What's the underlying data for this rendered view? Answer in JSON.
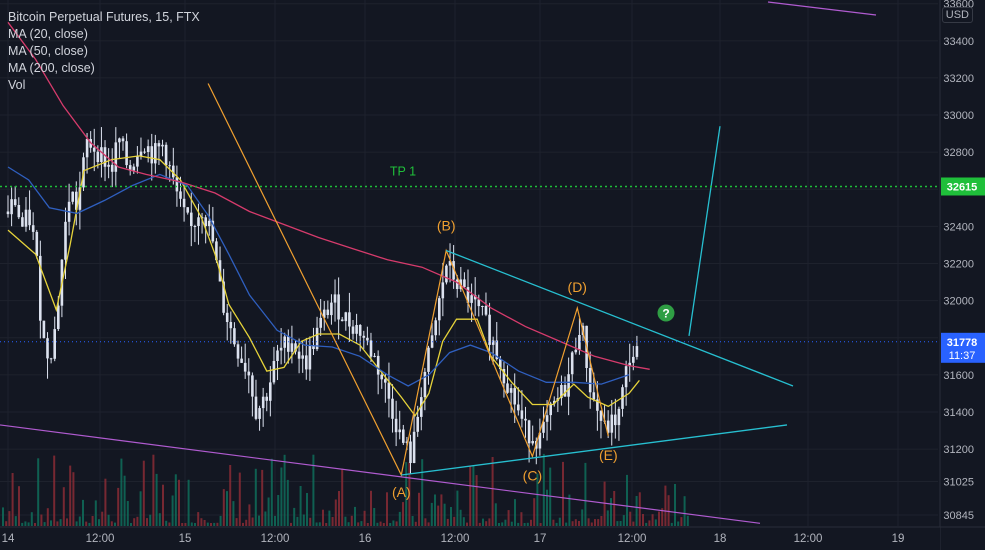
{
  "header": {
    "symbol_line": "Bitcoin Perpetual Futures, 15, FTX",
    "indicators": [
      "MA (20, close)",
      "MA (50, close)",
      "MA (200, close)",
      "Vol"
    ],
    "currency": "USD"
  },
  "colors": {
    "background": "#131722",
    "grid": "#1e222d",
    "text": "#b2b5be",
    "candle": "#dce2ef",
    "ma20": "#e6d33a",
    "ma50": "#2f5fbf",
    "ma200": "#d63b6c",
    "wave": "#f0a030",
    "triangle": "#27bfd0",
    "purple": "#b05bd0",
    "target_line": "#27bfd0",
    "tp_line": "#1fbf3a",
    "current_price_bg": "#2962ff",
    "vol_up": "#0f6d5b",
    "vol_down": "#8a2b35"
  },
  "chart_data": {
    "type": "candlestick",
    "instrument": "Bitcoin Perpetual Futures",
    "interval": "15",
    "exchange": "FTX",
    "y_axis": {
      "range": [
        30780,
        33620
      ],
      "ticks": [
        33600,
        33400,
        33200,
        33000,
        32800,
        32600,
        32400,
        32200,
        32000,
        31800,
        31600,
        31400,
        31200,
        31025,
        30845
      ]
    },
    "x_axis": {
      "ticks": [
        "14",
        "12:00",
        "15",
        "12:00",
        "16",
        "12:00",
        "17",
        "12:00",
        "18",
        "12:00",
        "19"
      ]
    },
    "price_path": [
      [
        0,
        32480
      ],
      [
        0.02,
        32540
      ],
      [
        0.04,
        32390
      ],
      [
        0.06,
        32460
      ],
      [
        0.08,
        32280
      ],
      [
        0.1,
        31800
      ],
      [
        0.12,
        31700
      ],
      [
        0.14,
        31880
      ],
      [
        0.16,
        32300
      ],
      [
        0.18,
        32600
      ],
      [
        0.2,
        32500
      ],
      [
        0.23,
        32860
      ],
      [
        0.27,
        32790
      ],
      [
        0.3,
        32700
      ],
      [
        0.32,
        32880
      ],
      [
        0.35,
        32700
      ],
      [
        0.39,
        32870
      ],
      [
        0.42,
        32780
      ],
      [
        0.45,
        32840
      ],
      [
        0.47,
        32700
      ],
      [
        0.5,
        32500
      ],
      [
        0.53,
        32380
      ],
      [
        0.56,
        32510
      ],
      [
        0.59,
        32360
      ],
      [
        0.62,
        32000
      ],
      [
        0.66,
        31760
      ],
      [
        0.7,
        31600
      ],
      [
        0.72,
        31400
      ],
      [
        0.75,
        31500
      ],
      [
        0.78,
        31700
      ],
      [
        0.82,
        31800
      ],
      [
        0.86,
        31650
      ],
      [
        0.9,
        31850
      ],
      [
        0.94,
        32000
      ],
      [
        0.98,
        31900
      ],
      [
        1.02,
        31840
      ],
      [
        1.06,
        31700
      ],
      [
        1.1,
        31500
      ],
      [
        1.14,
        31250
      ],
      [
        1.17,
        31150
      ],
      [
        1.2,
        31550
      ],
      [
        1.23,
        31780
      ],
      [
        1.27,
        32200
      ],
      [
        1.3,
        32100
      ],
      [
        1.34,
        32000
      ],
      [
        1.38,
        31900
      ],
      [
        1.42,
        31700
      ],
      [
        1.46,
        31500
      ],
      [
        1.5,
        31300
      ],
      [
        1.54,
        31250
      ],
      [
        1.58,
        31420
      ],
      [
        1.62,
        31550
      ],
      [
        1.66,
        31900
      ],
      [
        1.69,
        31500
      ],
      [
        1.73,
        31300
      ],
      [
        1.77,
        31380
      ],
      [
        1.8,
        31700
      ],
      [
        1.83,
        31720
      ]
    ],
    "series": [
      {
        "name": "MA (20, close)",
        "values": [
          [
            0,
            32380
          ],
          [
            0.08,
            32250
          ],
          [
            0.14,
            31950
          ],
          [
            0.18,
            32300
          ],
          [
            0.22,
            32700
          ],
          [
            0.3,
            32760
          ],
          [
            0.38,
            32780
          ],
          [
            0.44,
            32760
          ],
          [
            0.5,
            32650
          ],
          [
            0.56,
            32450
          ],
          [
            0.6,
            32250
          ],
          [
            0.64,
            31980
          ],
          [
            0.7,
            31800
          ],
          [
            0.75,
            31620
          ],
          [
            0.8,
            31640
          ],
          [
            0.85,
            31780
          ],
          [
            0.9,
            31820
          ],
          [
            0.96,
            31820
          ],
          [
            1.02,
            31760
          ],
          [
            1.08,
            31620
          ],
          [
            1.14,
            31480
          ],
          [
            1.18,
            31380
          ],
          [
            1.22,
            31500
          ],
          [
            1.26,
            31780
          ],
          [
            1.3,
            31900
          ],
          [
            1.36,
            31900
          ],
          [
            1.4,
            31700
          ],
          [
            1.46,
            31560
          ],
          [
            1.52,
            31440
          ],
          [
            1.58,
            31440
          ],
          [
            1.64,
            31550
          ],
          [
            1.68,
            31480
          ],
          [
            1.74,
            31430
          ],
          [
            1.8,
            31500
          ],
          [
            1.83,
            31570
          ]
        ]
      },
      {
        "name": "MA (50, close)",
        "values": [
          [
            0,
            32720
          ],
          [
            0.06,
            32650
          ],
          [
            0.12,
            32500
          ],
          [
            0.2,
            32470
          ],
          [
            0.28,
            32540
          ],
          [
            0.36,
            32620
          ],
          [
            0.44,
            32680
          ],
          [
            0.52,
            32620
          ],
          [
            0.58,
            32460
          ],
          [
            0.64,
            32250
          ],
          [
            0.7,
            32030
          ],
          [
            0.78,
            31840
          ],
          [
            0.86,
            31760
          ],
          [
            0.94,
            31750
          ],
          [
            1.02,
            31700
          ],
          [
            1.1,
            31600
          ],
          [
            1.16,
            31540
          ],
          [
            1.22,
            31600
          ],
          [
            1.28,
            31720
          ],
          [
            1.34,
            31760
          ],
          [
            1.4,
            31720
          ],
          [
            1.48,
            31620
          ],
          [
            1.56,
            31560
          ],
          [
            1.64,
            31560
          ],
          [
            1.72,
            31550
          ],
          [
            1.8,
            31600
          ]
        ]
      },
      {
        "name": "MA (200, close)",
        "values": [
          [
            0,
            33500
          ],
          [
            0.08,
            33300
          ],
          [
            0.16,
            33050
          ],
          [
            0.24,
            32850
          ],
          [
            0.32,
            32720
          ],
          [
            0.4,
            32680
          ],
          [
            0.5,
            32640
          ],
          [
            0.6,
            32580
          ],
          [
            0.7,
            32480
          ],
          [
            0.8,
            32410
          ],
          [
            0.9,
            32340
          ],
          [
            1.0,
            32280
          ],
          [
            1.1,
            32220
          ],
          [
            1.2,
            32180
          ],
          [
            1.3,
            32100
          ],
          [
            1.4,
            31960
          ],
          [
            1.5,
            31860
          ],
          [
            1.6,
            31780
          ],
          [
            1.7,
            31700
          ],
          [
            1.8,
            31650
          ],
          [
            1.86,
            31630
          ]
        ]
      },
      {
        "name": "Vol",
        "values": []
      }
    ],
    "annotations": {
      "tp": {
        "label": "TP 1",
        "price": 32615
      },
      "current_price": 31778,
      "countdown": "11:37",
      "waves": [
        {
          "label": "(A)",
          "x": 1.14,
          "y": 31060,
          "color": "#f0a030"
        },
        {
          "label": "(B)",
          "x": 1.27,
          "y": 32280,
          "color": "#f0a030"
        },
        {
          "label": "(C)",
          "x": 1.52,
          "y": 31160,
          "color": "#f0a030"
        },
        {
          "label": "(D)",
          "x": 1.65,
          "y": 31950,
          "color": "#f0a030"
        },
        {
          "label": "(E)",
          "x": 1.74,
          "y": 31270,
          "color": "#f0a030"
        }
      ],
      "question_mark": "?"
    }
  }
}
